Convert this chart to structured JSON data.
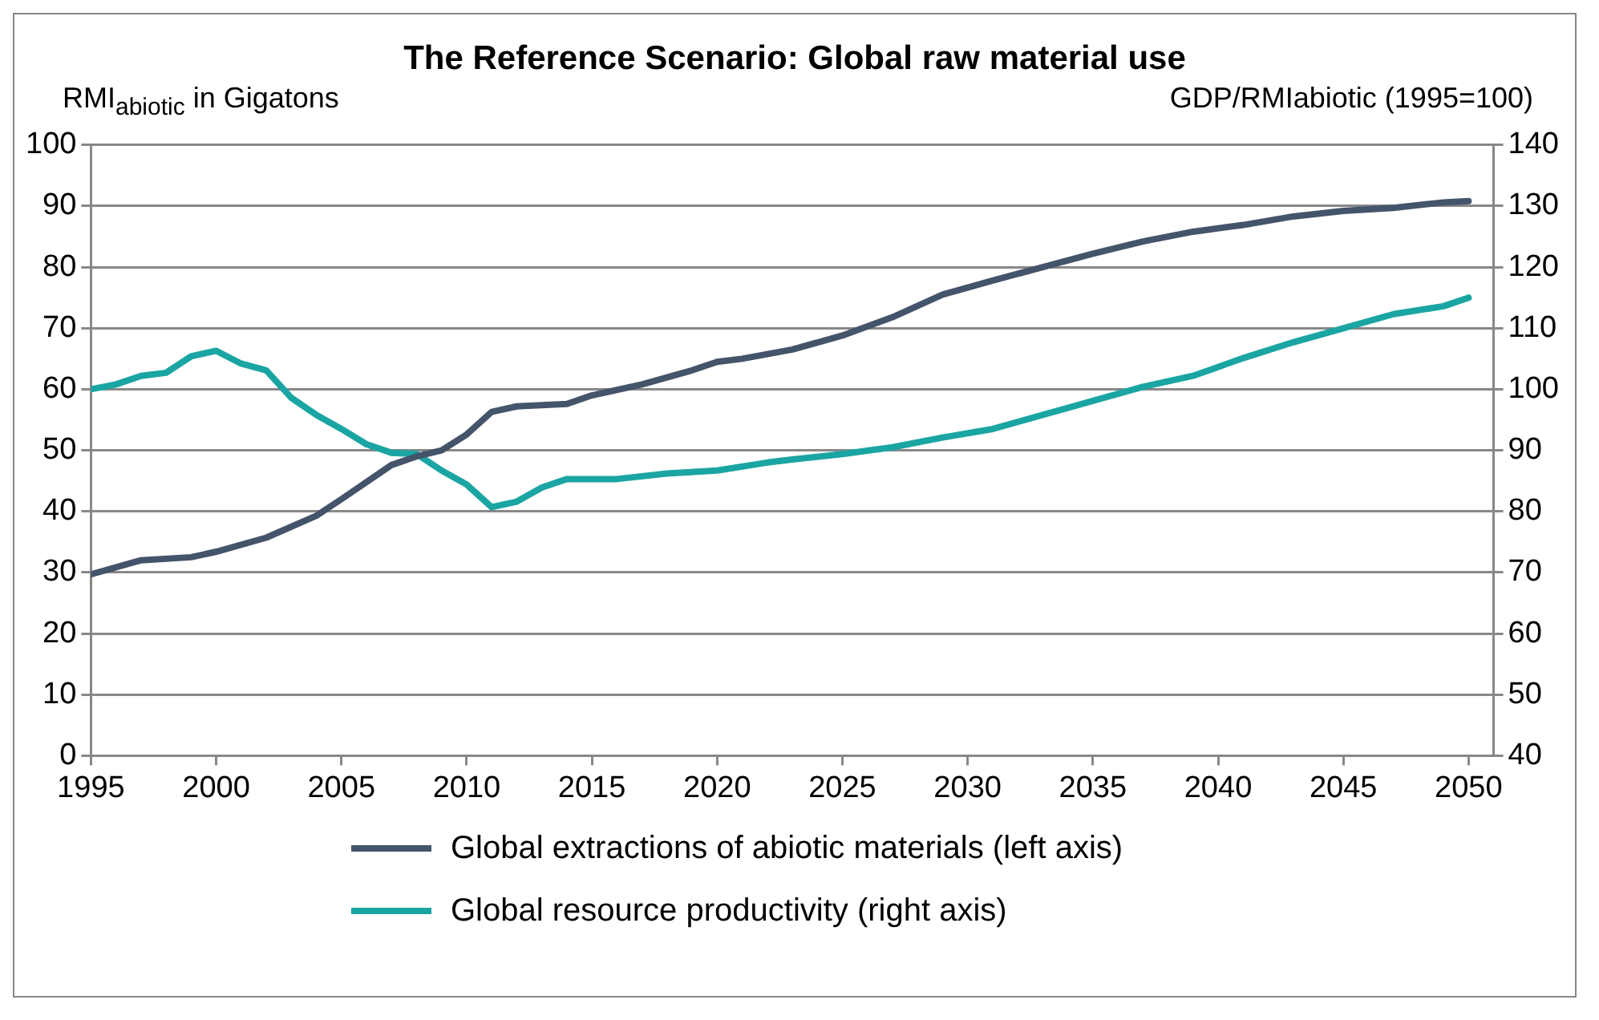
{
  "chart_data": {
    "type": "line",
    "title": "The Reference Scenario: Global raw material use",
    "ylabel": "RMI$_{abiotic}$ in Gigatons",
    "y2label": "GDP/RMIabiotic (1995=100)",
    "xlim": [
      1995,
      2051
    ],
    "xticks": [
      1995,
      2000,
      2005,
      2010,
      2015,
      2020,
      2025,
      2030,
      2035,
      2040,
      2045,
      2050
    ],
    "ylim": [
      0,
      100
    ],
    "yticks": [
      0,
      10,
      20,
      30,
      40,
      50,
      60,
      70,
      80,
      90,
      100
    ],
    "y2lim": [
      40,
      140
    ],
    "y2ticks": [
      40,
      50,
      60,
      70,
      80,
      90,
      100,
      110,
      120,
      130,
      140
    ],
    "grid": "y",
    "legend": "bottom",
    "marker": "none",
    "line_style": "solid",
    "series": [
      {
        "name": "Global extractions of abiotic materials (left axis)",
        "color": "#44546a",
        "x": [
          1995,
          1997,
          1999,
          2000,
          2002,
          2004,
          2005,
          2007,
          2008,
          2009,
          2010,
          2011,
          2012,
          2014,
          2015,
          2017,
          2019,
          2020,
          2021,
          2023,
          2025,
          2027,
          2029,
          2031,
          2033,
          2035,
          2037,
          2039,
          2041,
          2043,
          2045,
          2047,
          2049,
          2050
        ],
        "values": [
          29.7,
          32,
          32.5,
          33.4,
          35.7,
          39.3,
          42,
          47.6,
          49,
          50,
          52.6,
          56.3,
          57.2,
          57.6,
          59,
          60.8,
          63.1,
          64.5,
          65,
          66.5,
          68.8,
          71.8,
          75.5,
          77.8,
          80,
          82.2,
          84.2,
          85.8,
          86.9,
          88.3,
          89.2,
          89.7,
          90.6,
          90.8
        ]
      },
      {
        "name": "Global resource productivity (right axis)",
        "color": "#1aa5a3",
        "axis": "y2",
        "x": [
          1995,
          1996,
          1997,
          1998,
          1999,
          2000,
          2001,
          2002,
          2003,
          2004,
          2005,
          2006,
          2007,
          2008,
          2009,
          2010,
          2011,
          2012,
          2013,
          2014,
          2016,
          2018,
          2020,
          2022,
          2023,
          2025,
          2027,
          2029,
          2031,
          2033,
          2035,
          2037,
          2039,
          2041,
          2043,
          2045,
          2047,
          2049,
          2050
        ],
        "values": [
          100,
          100.8,
          102.2,
          102.7,
          105.4,
          106.3,
          104.2,
          103.1,
          98.6,
          95.8,
          93.5,
          91,
          89.6,
          89.4,
          86.7,
          84.4,
          80.7,
          81.6,
          83.9,
          85.3,
          85.3,
          86.2,
          86.7,
          88,
          88.5,
          89.4,
          90.5,
          92.1,
          93.5,
          95.8,
          98.1,
          100.4,
          102.2,
          105.1,
          107.7,
          110,
          112.3,
          113.6,
          115
        ]
      }
    ]
  }
}
